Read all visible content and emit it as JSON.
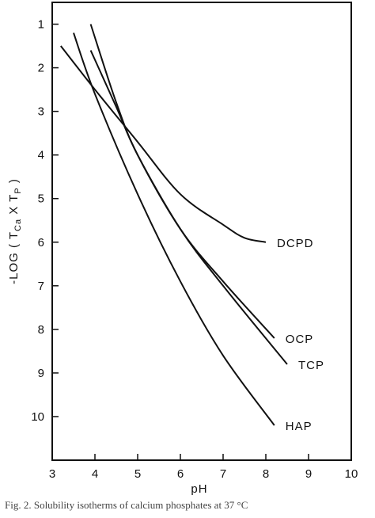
{
  "chart_data": {
    "type": "line",
    "xlabel": "pH",
    "ylabel": "-LOG ( T_Ca X T_P )",
    "ylabel_parts": {
      "prefix": "-LOG ( T",
      "sub1": "Ca",
      "mid": " X T",
      "sub2": "P",
      "suffix": " )"
    },
    "xlim": [
      3,
      10
    ],
    "ylim": [
      11,
      0.5
    ],
    "y_inverted": true,
    "grid": false,
    "legend": "none",
    "x_ticks": [
      3,
      4,
      5,
      6,
      7,
      8,
      9,
      10
    ],
    "y_ticks": [
      1,
      2,
      3,
      4,
      5,
      6,
      7,
      8,
      9,
      10
    ],
    "series": [
      {
        "name": "DCPD",
        "x": [
          3.2,
          4.0,
          5.0,
          6.0,
          7.0,
          7.5,
          8.0
        ],
        "y": [
          1.5,
          2.5,
          3.7,
          4.9,
          5.6,
          5.9,
          6.0
        ]
      },
      {
        "name": "OCP",
        "x": [
          3.9,
          4.5,
          5.0,
          6.0,
          7.0,
          8.2
        ],
        "y": [
          1.0,
          2.8,
          4.0,
          5.7,
          6.9,
          8.2
        ]
      },
      {
        "name": "TCP",
        "x": [
          3.9,
          4.5,
          5.0,
          6.0,
          7.0,
          8.5
        ],
        "y": [
          1.6,
          2.9,
          4.0,
          5.7,
          7.0,
          8.8
        ]
      },
      {
        "name": "HAP",
        "x": [
          3.5,
          4.0,
          5.0,
          6.0,
          7.0,
          8.2
        ],
        "y": [
          1.2,
          2.6,
          4.9,
          6.9,
          8.6,
          10.2
        ]
      }
    ]
  },
  "caption": "Fig. 2. Solubility isotherms of calcium phosphates at 37 °C"
}
